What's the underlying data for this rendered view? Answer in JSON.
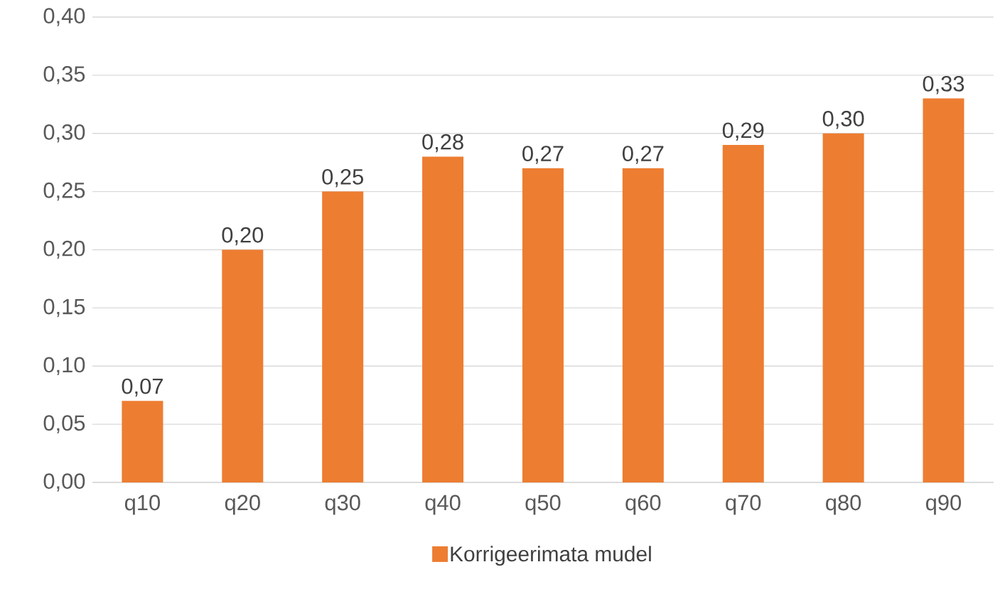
{
  "chart_data": {
    "type": "bar",
    "categories": [
      "q10",
      "q20",
      "q30",
      "q40",
      "q50",
      "q60",
      "q70",
      "q80",
      "q90"
    ],
    "series": [
      {
        "name": "Korrigeerimata mudel",
        "color": "#ed7d31",
        "values": [
          0.07,
          0.2,
          0.25,
          0.28,
          0.27,
          0.27,
          0.29,
          0.3,
          0.33
        ],
        "value_labels": [
          "0,07",
          "0,20",
          "0,25",
          "0,28",
          "0,27",
          "0,27",
          "0,29",
          "0,30",
          "0,33"
        ]
      }
    ],
    "ylim": [
      0,
      0.4
    ],
    "yticks": [
      {
        "value": 0,
        "label": "0,00"
      },
      {
        "value": 0.05,
        "label": "0,05"
      },
      {
        "value": 0.1,
        "label": "0,10"
      },
      {
        "value": 0.15,
        "label": "0,15"
      },
      {
        "value": 0.2,
        "label": "0,20"
      },
      {
        "value": 0.25,
        "label": "0,25"
      },
      {
        "value": 0.3,
        "label": "0,30"
      },
      {
        "value": 0.35,
        "label": "0,35"
      },
      {
        "value": 0.4,
        "label": "0,40"
      }
    ],
    "grid": "y",
    "legend": "bottom"
  }
}
